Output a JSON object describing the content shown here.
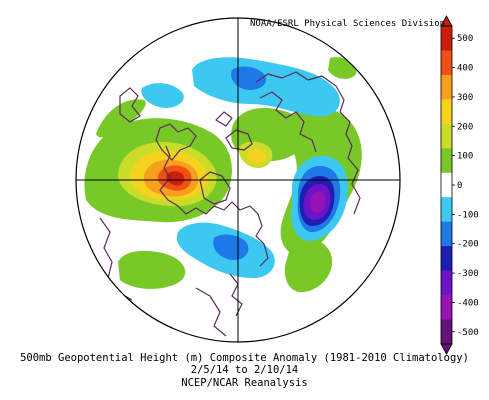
{
  "credit": "NOAA/ESRL Physical Sciences Division",
  "caption": {
    "line1": "500mb Geopotential Height (m) Composite Anomaly (1981-2010 Climatology)",
    "line2": "2/5/14  to 2/10/14",
    "line3": "NCEP/NCAR Reanalysis"
  },
  "colorbar": {
    "ticks": [
      "500",
      "400",
      "300",
      "200",
      "100",
      "0",
      "-100",
      "-200",
      "-300",
      "-400",
      "-500"
    ],
    "colors": [
      "#c81e0a",
      "#f05014",
      "#f7a01e",
      "#f5d21e",
      "#c8dc28",
      "#78c828",
      "#ffffff",
      "#3cc8f0",
      "#1e78e6",
      "#1e1eb4",
      "#6e14c8",
      "#9614b4",
      "#641478"
    ]
  },
  "colors": {
    "ocean": "#ffffff",
    "land_outline": "#5a2a5a",
    "frame": "#000000"
  }
}
